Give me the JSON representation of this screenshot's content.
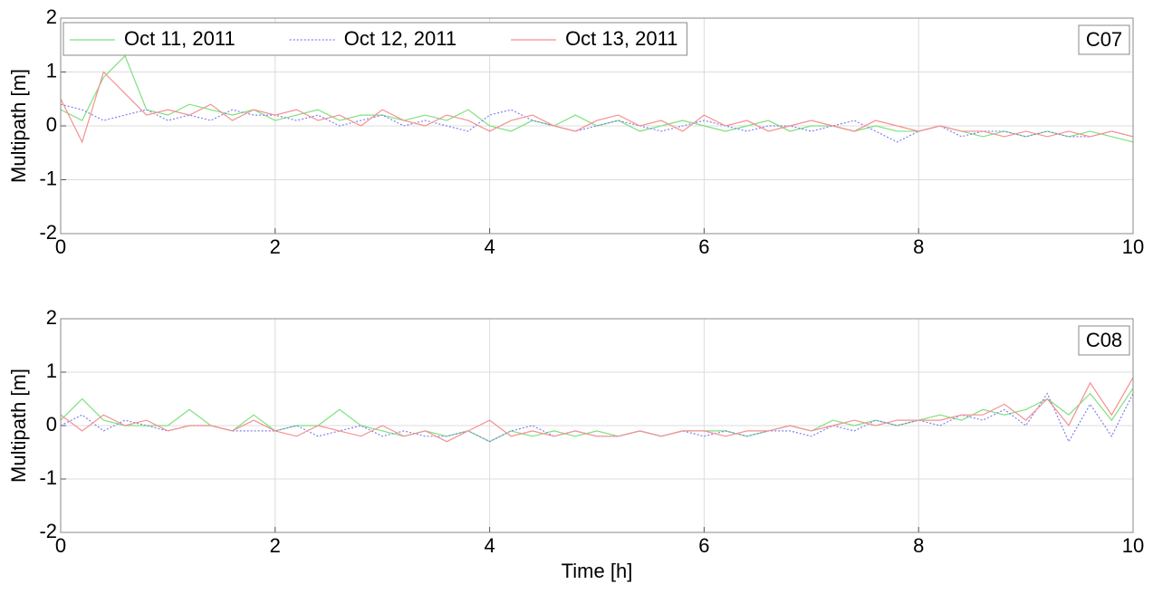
{
  "chart_data": [
    {
      "type": "line",
      "ylabel": "Multipath [m]",
      "annotation": "C07",
      "x": [
        0,
        0.2,
        0.4,
        0.6,
        0.8,
        1,
        1.2,
        1.4,
        1.6,
        1.8,
        2,
        2.2,
        2.4,
        2.6,
        2.8,
        3,
        3.2,
        3.4,
        3.6,
        3.8,
        4,
        4.2,
        4.4,
        4.6,
        4.8,
        5,
        5.2,
        5.4,
        5.6,
        5.8,
        6,
        6.2,
        6.4,
        6.6,
        6.8,
        7,
        7.2,
        7.4,
        7.6,
        7.8,
        8,
        8.2,
        8.4,
        8.6,
        8.8,
        9,
        9.2,
        9.4,
        9.6,
        9.8,
        10
      ],
      "series": [
        {
          "name": "Oct 11, 2011",
          "color": "#7ee07e",
          "style": "solid",
          "values": [
            0.3,
            0.1,
            0.9,
            1.3,
            0.3,
            0.2,
            0.4,
            0.3,
            0.2,
            0.3,
            0.1,
            0.2,
            0.3,
            0.1,
            0.2,
            0.2,
            0.1,
            0.2,
            0.1,
            0.3,
            0.0,
            -0.1,
            0.1,
            0.0,
            0.2,
            0.0,
            0.1,
            -0.1,
            0.0,
            0.1,
            0.0,
            -0.1,
            0.0,
            0.1,
            -0.1,
            0.0,
            0.0,
            -0.1,
            0.0,
            -0.1,
            -0.1,
            0.0,
            -0.1,
            -0.2,
            -0.1,
            -0.2,
            -0.1,
            -0.2,
            -0.1,
            -0.2,
            -0.3
          ]
        },
        {
          "name": "Oct 12, 2011",
          "color": "#8080f0",
          "style": "dotted",
          "values": [
            0.4,
            0.3,
            0.1,
            0.2,
            0.3,
            0.1,
            0.2,
            0.1,
            0.3,
            0.2,
            0.2,
            0.1,
            0.2,
            0.0,
            0.1,
            0.2,
            0.0,
            0.1,
            0.0,
            -0.1,
            0.2,
            0.3,
            0.1,
            0.0,
            -0.1,
            0.0,
            0.1,
            0.0,
            -0.1,
            0.0,
            0.1,
            0.0,
            -0.1,
            0.0,
            0.0,
            -0.1,
            0.0,
            0.1,
            -0.1,
            -0.3,
            -0.1,
            0.0,
            -0.2,
            -0.1,
            -0.1,
            -0.2,
            -0.1,
            -0.2,
            -0.2,
            -0.1,
            -0.2
          ]
        },
        {
          "name": "Oct 13, 2011",
          "color": "#f59090",
          "style": "solid",
          "values": [
            0.5,
            -0.3,
            1.0,
            0.6,
            0.2,
            0.3,
            0.2,
            0.4,
            0.1,
            0.3,
            0.2,
            0.3,
            0.1,
            0.2,
            0.0,
            0.3,
            0.1,
            0.0,
            0.2,
            0.1,
            -0.1,
            0.1,
            0.2,
            0.0,
            -0.1,
            0.1,
            0.2,
            0.0,
            0.1,
            -0.1,
            0.2,
            0.0,
            0.1,
            -0.1,
            0.0,
            0.1,
            0.0,
            -0.1,
            0.1,
            0.0,
            -0.1,
            0.0,
            -0.1,
            -0.1,
            -0.2,
            -0.1,
            -0.2,
            -0.1,
            -0.2,
            -0.1,
            -0.2
          ]
        }
      ],
      "xlim": [
        0,
        10
      ],
      "xticks": [
        0,
        2,
        4,
        6,
        8,
        10
      ],
      "ylim": [
        -2,
        2
      ],
      "yticks": [
        -2,
        -1,
        0,
        1,
        2
      ],
      "grid": true,
      "legend": "upper left"
    },
    {
      "type": "line",
      "ylabel": "Multipath [m]",
      "xlabel": "Time [h]",
      "annotation": "C08",
      "x": [
        0,
        0.2,
        0.4,
        0.6,
        0.8,
        1,
        1.2,
        1.4,
        1.6,
        1.8,
        2,
        2.2,
        2.4,
        2.6,
        2.8,
        3,
        3.2,
        3.4,
        3.6,
        3.8,
        4,
        4.2,
        4.4,
        4.6,
        4.8,
        5,
        5.2,
        5.4,
        5.6,
        5.8,
        6,
        6.2,
        6.4,
        6.6,
        6.8,
        7,
        7.2,
        7.4,
        7.6,
        7.8,
        8,
        8.2,
        8.4,
        8.6,
        8.8,
        9,
        9.2,
        9.4,
        9.6,
        9.8,
        10
      ],
      "series": [
        {
          "color": "#7ee07e",
          "style": "solid",
          "values": [
            0.1,
            0.5,
            0.1,
            0.0,
            0.0,
            0.0,
            0.3,
            0.0,
            -0.1,
            0.2,
            -0.1,
            0.0,
            0.0,
            0.3,
            0.0,
            -0.1,
            -0.2,
            -0.1,
            -0.2,
            -0.1,
            -0.3,
            -0.1,
            -0.2,
            -0.1,
            -0.2,
            -0.1,
            -0.2,
            -0.1,
            -0.2,
            -0.1,
            -0.1,
            -0.1,
            -0.2,
            -0.1,
            0.0,
            -0.1,
            0.1,
            0.0,
            0.1,
            0.0,
            0.1,
            0.2,
            0.1,
            0.3,
            0.2,
            0.3,
            0.5,
            0.2,
            0.6,
            0.1,
            0.7
          ]
        },
        {
          "color": "#8080f0",
          "style": "dotted",
          "values": [
            0.0,
            0.2,
            -0.1,
            0.1,
            0.0,
            -0.1,
            0.0,
            0.0,
            -0.1,
            -0.1,
            -0.1,
            0.0,
            -0.2,
            -0.1,
            0.0,
            -0.2,
            -0.1,
            -0.2,
            -0.2,
            -0.1,
            -0.3,
            -0.1,
            0.0,
            -0.2,
            -0.1,
            -0.2,
            -0.2,
            -0.1,
            -0.2,
            -0.1,
            -0.2,
            -0.1,
            -0.2,
            -0.1,
            -0.1,
            -0.2,
            0.0,
            -0.1,
            0.1,
            0.0,
            0.1,
            0.0,
            0.2,
            0.1,
            0.3,
            0.0,
            0.6,
            -0.3,
            0.4,
            -0.2,
            0.6
          ]
        },
        {
          "color": "#f59090",
          "style": "solid",
          "values": [
            0.2,
            -0.1,
            0.2,
            0.0,
            0.1,
            -0.1,
            0.0,
            0.0,
            -0.1,
            0.1,
            -0.1,
            -0.2,
            0.0,
            -0.1,
            -0.2,
            0.0,
            -0.2,
            -0.1,
            -0.3,
            -0.1,
            0.1,
            -0.2,
            -0.1,
            -0.2,
            -0.1,
            -0.2,
            -0.2,
            -0.1,
            -0.2,
            -0.1,
            -0.1,
            -0.2,
            -0.1,
            -0.1,
            0.0,
            -0.1,
            0.0,
            0.1,
            0.0,
            0.1,
            0.1,
            0.1,
            0.2,
            0.2,
            0.4,
            0.1,
            0.5,
            0.0,
            0.8,
            0.2,
            0.9
          ]
        }
      ],
      "xlim": [
        0,
        10
      ],
      "xticks": [
        0,
        2,
        4,
        6,
        8,
        10
      ],
      "ylim": [
        -2,
        2
      ],
      "yticks": [
        -2,
        -1,
        0,
        1,
        2
      ],
      "grid": true
    }
  ]
}
